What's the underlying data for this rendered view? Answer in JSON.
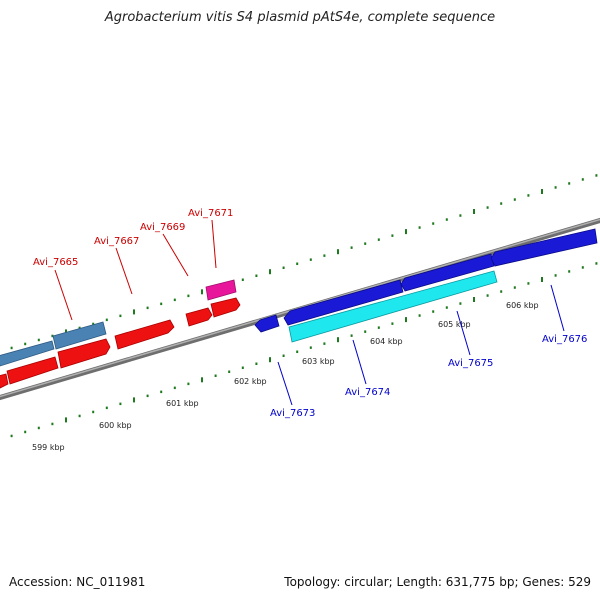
{
  "title": "Agrobacterium vitis S4 plasmid pAtS4e, complete sequence",
  "footer": {
    "accession": "Accession: NC_011981",
    "stats": "Topology: circular; Length: 631,775 bp; Genes: 529"
  },
  "colors": {
    "backbone": "#8c8c8c",
    "tick": "#1e7a1e",
    "forward_label": "#cc0000",
    "reverse_label": "#0000cc",
    "gene_red": "#ee1111",
    "gene_steelblue": "#4a82b4",
    "gene_magenta": "#e8169a",
    "gene_blue": "#1a1ad6",
    "gene_cyan": "#1ee8ee"
  },
  "scale": {
    "ticks": [
      {
        "label": "599 kbp"
      },
      {
        "label": "600 kbp"
      },
      {
        "label": "601 kbp"
      },
      {
        "label": "602 kbp"
      },
      {
        "label": "603 kbp"
      },
      {
        "label": "604 kbp"
      },
      {
        "label": "605 kbp"
      },
      {
        "label": "606 kbp"
      }
    ]
  },
  "genes": {
    "forward_labels": [
      {
        "name": "Avi_7665",
        "color": "#cc0000"
      },
      {
        "name": "Avi_7667",
        "color": "#cc0000"
      },
      {
        "name": "Avi_7669",
        "color": "#cc0000"
      },
      {
        "name": "Avi_7671",
        "color": "#cc0000"
      }
    ],
    "reverse_labels": [
      {
        "name": "Avi_7673",
        "color": "#0000cc"
      },
      {
        "name": "Avi_7674",
        "color": "#0000cc"
      },
      {
        "name": "Avi_7675",
        "color": "#0000cc"
      },
      {
        "name": "Avi_7676",
        "color": "#0000cc"
      }
    ]
  }
}
